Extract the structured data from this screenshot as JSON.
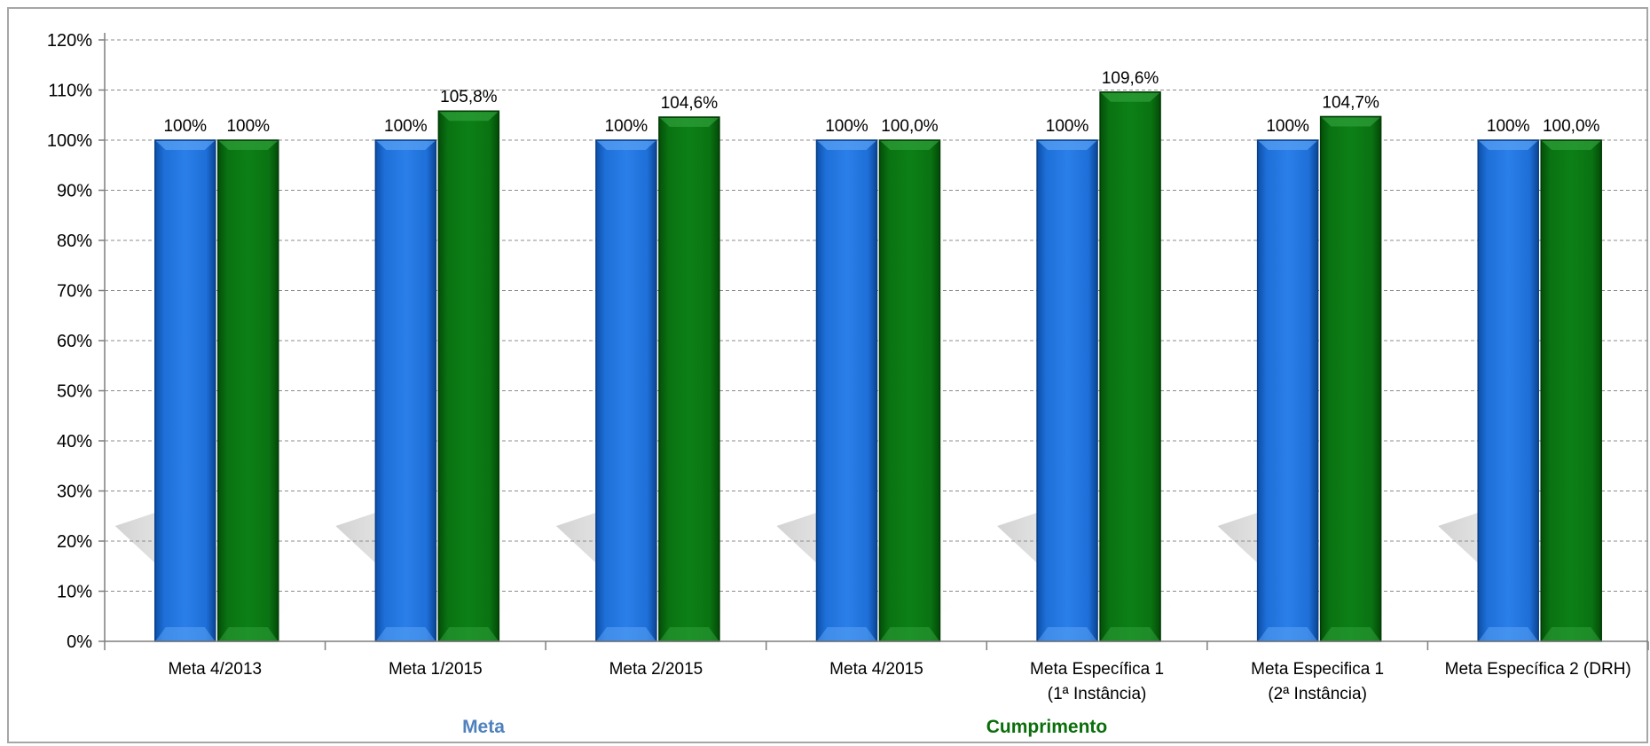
{
  "chart_data": {
    "type": "bar",
    "categories": [
      [
        "Meta 4/2013"
      ],
      [
        "Meta 1/2015"
      ],
      [
        "Meta 2/2015"
      ],
      [
        "Meta 4/2015"
      ],
      [
        "Meta Específica 1",
        "(1ª Instância)"
      ],
      [
        "Meta Especifica 1",
        "(2ª Instância)"
      ],
      [
        "Meta Específica 2 (DRH)"
      ]
    ],
    "series": [
      {
        "name": "Meta",
        "color": "#1f6fd6",
        "values": [
          100,
          100,
          100,
          100,
          100,
          100,
          100
        ],
        "labels": [
          "100%",
          "100%",
          "100%",
          "100%",
          "100%",
          "100%",
          "100%"
        ]
      },
      {
        "name": "Cumprimento",
        "color": "#0a7a12",
        "values": [
          100,
          105.8,
          104.6,
          100.0,
          109.6,
          104.7,
          100.0
        ],
        "labels": [
          "100%",
          "105,8%",
          "104,6%",
          "100,0%",
          "109,6%",
          "104,7%",
          "100,0%"
        ]
      }
    ],
    "y_ticks": [
      "0%",
      "10%",
      "20%",
      "30%",
      "40%",
      "50%",
      "60%",
      "70%",
      "80%",
      "90%",
      "100%",
      "110%",
      "120%"
    ],
    "ylim": [
      0,
      120
    ],
    "grid": true,
    "legend": {
      "placement": "bottom",
      "colors": {
        "Meta": "#4f81bd",
        "Cumprimento": "#0a6e0a"
      }
    }
  }
}
